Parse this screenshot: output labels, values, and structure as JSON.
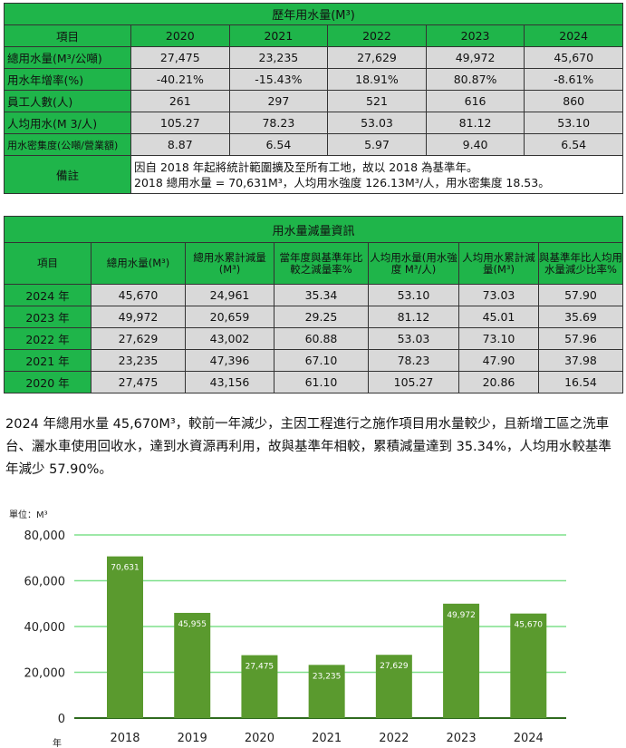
{
  "table1": {
    "title": "歷年用水量(M³)",
    "headers": [
      "項目",
      "2020",
      "2021",
      "2022",
      "2023",
      "2024"
    ],
    "rows": [
      {
        "label": "總用水量(M³/公噸)",
        "values": [
          "27,475",
          "23,235",
          "27,629",
          "49,972",
          "45,670"
        ]
      },
      {
        "label": "用水年增率(%)",
        "values": [
          "-40.21%",
          "-15.43%",
          "18.91%",
          "80.87%",
          "-8.61%"
        ]
      },
      {
        "label": "員工人數(人)",
        "values": [
          "261",
          "297",
          "521",
          "616",
          "860"
        ]
      },
      {
        "label": "人均用水(M 3/人)",
        "values": [
          "105.27",
          "78.23",
          "53.03",
          "81.12",
          "53.10"
        ]
      },
      {
        "label": "用水密集度(公噸/營業額)",
        "values": [
          "8.87",
          "6.54",
          "5.97",
          "9.40",
          "6.54"
        ]
      }
    ],
    "note_label": "備註",
    "note_line1": "因自 2018 年起將統計範圍擴及至所有工地，故以 2018 為基準年。",
    "note_line2": "2018 總用水量 = 70,631M³，人均用水強度 126.13M³/人，用水密集度 18.53。"
  },
  "table2": {
    "title": "用水量減量資訊",
    "headers": [
      "項目",
      "總用水量(M³)",
      "總用水累計減量(M³)",
      "當年度與基準年比較之減量率%",
      "人均用水量(用水強度 M³/人)",
      "人均用水累計減量(M³)",
      "與基準年比人均用水量減少比率%"
    ],
    "rows": [
      [
        "2024 年",
        "45,670",
        "24,961",
        "35.34",
        "53.10",
        "73.03",
        "57.90"
      ],
      [
        "2023 年",
        "49,972",
        "20,659",
        "29.25",
        "81.12",
        "45.01",
        "35.69"
      ],
      [
        "2022 年",
        "27,629",
        "43,002",
        "60.88",
        "53.03",
        "73.10",
        "57.96"
      ],
      [
        "2021 年",
        "23,235",
        "47,396",
        "67.10",
        "78.23",
        "47.90",
        "37.98"
      ],
      [
        "2020 年",
        "27,475",
        "43,156",
        "61.10",
        "105.27",
        "20.86",
        "16.54"
      ]
    ]
  },
  "paragraph": "2024 年總用水量 45,670M³，較前一年減少，主因工程進行之施作項目用水量較少，且新增工區之洗車台、灑水車使用回收水，達到水資源再利用，故與基準年相較，累積減量達到 35.34%，人均用水較基準年減少 57.90%。",
  "colors": {
    "header_green": "#1fb54a",
    "bar": "#5a9a2e",
    "grid": "#7fe08c",
    "gray": "#d9d9d9"
  },
  "chart_data": {
    "type": "bar",
    "unit_label": "單位：M³",
    "xlabel": "年",
    "categories": [
      "2018",
      "2019",
      "2020",
      "2021",
      "2022",
      "2023",
      "2024"
    ],
    "values": [
      70631,
      45955,
      27475,
      23235,
      27629,
      49972,
      45670
    ],
    "data_labels": [
      "70,631",
      "45,955",
      "27,475",
      "23,235",
      "27,629",
      "49,972",
      "45,670"
    ],
    "ylim": [
      0,
      80000
    ],
    "yticks": [
      "0",
      "20,000",
      "40,000",
      "60,000",
      "80,000"
    ],
    "ytick_values": [
      0,
      20000,
      40000,
      60000,
      80000
    ],
    "grid": true
  }
}
